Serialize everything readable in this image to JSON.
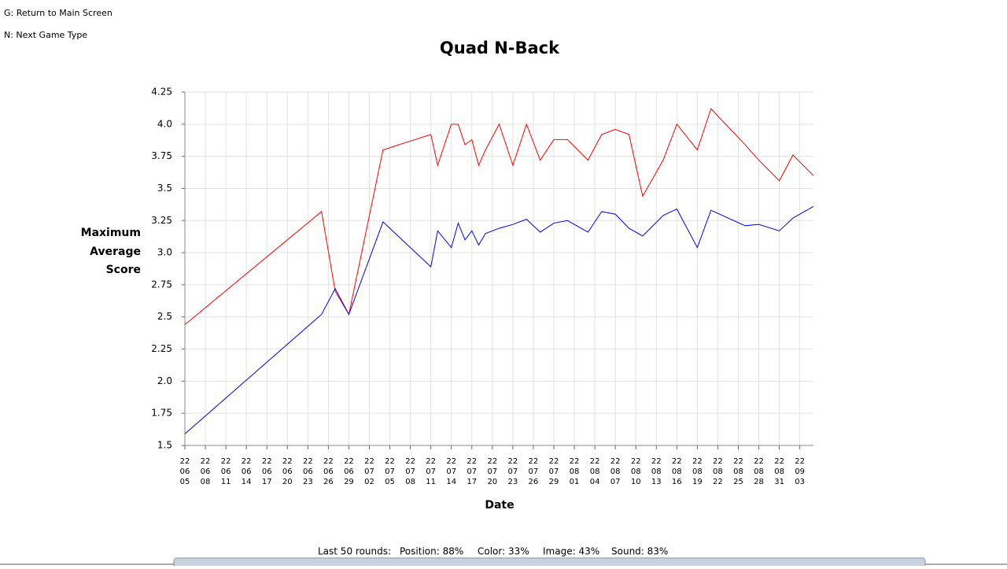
{
  "ui": {
    "hints": [
      "G: Return to Main Screen",
      "N: Next Game Type"
    ],
    "status": [
      "Last 50 rounds:",
      "Position: 88%",
      "Color: 33%",
      "Image: 43%",
      "Sound: 83%"
    ]
  },
  "chart_data": {
    "type": "line",
    "title": "Quad N-Back",
    "x_label": "Date",
    "y_label": "Score",
    "x": [
      "2022-06-05",
      "2022-06-25",
      "2022-06-27",
      "2022-06-29",
      "2022-07-04",
      "2022-07-11",
      "2022-07-12",
      "2022-07-14",
      "2022-07-15",
      "2022-07-16",
      "2022-07-17",
      "2022-07-18",
      "2022-07-19",
      "2022-07-21",
      "2022-07-23",
      "2022-07-25",
      "2022-07-27",
      "2022-07-29",
      "2022-07-31",
      "2022-08-03",
      "2022-08-05",
      "2022-08-07",
      "2022-08-09",
      "2022-08-11",
      "2022-08-14",
      "2022-08-16",
      "2022-08-19",
      "2022-08-21",
      "2022-08-26",
      "2022-08-28",
      "2022-08-31",
      "2022-09-02",
      "2022-09-05"
    ],
    "series": [
      {
        "name": "Maximum",
        "color": "#ff0000",
        "values": [
          2.44,
          3.32,
          2.7,
          2.52,
          3.8,
          3.92,
          3.68,
          4.0,
          4.0,
          3.84,
          3.88,
          3.68,
          3.8,
          4.0,
          3.68,
          4.0,
          3.72,
          3.88,
          3.88,
          3.72,
          3.92,
          3.96,
          3.92,
          3.44,
          3.72,
          4.0,
          3.8,
          4.12,
          3.84,
          3.72,
          3.56,
          3.76,
          3.6
        ]
      },
      {
        "name": "Average",
        "color": "#0000ff",
        "values": [
          1.59,
          2.52,
          2.72,
          2.52,
          3.24,
          2.89,
          3.17,
          3.04,
          3.23,
          3.1,
          3.17,
          3.06,
          3.15,
          3.19,
          3.22,
          3.26,
          3.16,
          3.23,
          3.25,
          3.16,
          3.32,
          3.3,
          3.19,
          3.13,
          3.29,
          3.34,
          3.04,
          3.33,
          3.21,
          3.22,
          3.17,
          3.27,
          3.36
        ]
      }
    ],
    "xlim": [
      "2022-06-05",
      "2022-09-05"
    ],
    "xticks": [
      {
        "value": "2022-06-05",
        "label": [
          "22",
          "06",
          "05"
        ]
      },
      {
        "value": "2022-06-08",
        "label": [
          "22",
          "06",
          "08"
        ]
      },
      {
        "value": "2022-06-11",
        "label": [
          "22",
          "06",
          "11"
        ]
      },
      {
        "value": "2022-06-14",
        "label": [
          "22",
          "06",
          "14"
        ]
      },
      {
        "value": "2022-06-17",
        "label": [
          "22",
          "06",
          "17"
        ]
      },
      {
        "value": "2022-06-20",
        "label": [
          "22",
          "06",
          "20"
        ]
      },
      {
        "value": "2022-06-23",
        "label": [
          "22",
          "06",
          "23"
        ]
      },
      {
        "value": "2022-06-26",
        "label": [
          "22",
          "06",
          "26"
        ]
      },
      {
        "value": "2022-06-29",
        "label": [
          "22",
          "06",
          "29"
        ]
      },
      {
        "value": "2022-07-02",
        "label": [
          "22",
          "07",
          "02"
        ]
      },
      {
        "value": "2022-07-05",
        "label": [
          "22",
          "07",
          "05"
        ]
      },
      {
        "value": "2022-07-08",
        "label": [
          "22",
          "07",
          "08"
        ]
      },
      {
        "value": "2022-07-11",
        "label": [
          "22",
          "07",
          "11"
        ]
      },
      {
        "value": "2022-07-14",
        "label": [
          "22",
          "07",
          "14"
        ]
      },
      {
        "value": "2022-07-17",
        "label": [
          "22",
          "07",
          "17"
        ]
      },
      {
        "value": "2022-07-20",
        "label": [
          "22",
          "07",
          "20"
        ]
      },
      {
        "value": "2022-07-23",
        "label": [
          "22",
          "07",
          "23"
        ]
      },
      {
        "value": "2022-07-26",
        "label": [
          "22",
          "07",
          "26"
        ]
      },
      {
        "value": "2022-07-29",
        "label": [
          "22",
          "07",
          "29"
        ]
      },
      {
        "value": "2022-08-01",
        "label": [
          "22",
          "08",
          "01"
        ]
      },
      {
        "value": "2022-08-04",
        "label": [
          "22",
          "08",
          "04"
        ]
      },
      {
        "value": "2022-08-07",
        "label": [
          "22",
          "08",
          "07"
        ]
      },
      {
        "value": "2022-08-10",
        "label": [
          "22",
          "08",
          "10"
        ]
      },
      {
        "value": "2022-08-13",
        "label": [
          "22",
          "08",
          "13"
        ]
      },
      {
        "value": "2022-08-16",
        "label": [
          "22",
          "08",
          "16"
        ]
      },
      {
        "value": "2022-08-19",
        "label": [
          "22",
          "08",
          "19"
        ]
      },
      {
        "value": "2022-08-22",
        "label": [
          "22",
          "08",
          "22"
        ]
      },
      {
        "value": "2022-08-25",
        "label": [
          "22",
          "08",
          "25"
        ]
      },
      {
        "value": "2022-08-28",
        "label": [
          "22",
          "08",
          "28"
        ]
      },
      {
        "value": "2022-08-31",
        "label": [
          "22",
          "08",
          "31"
        ]
      },
      {
        "value": "2022-09-03",
        "label": [
          "22",
          "09",
          "03"
        ]
      }
    ],
    "ylim": [
      1.5,
      4.25
    ],
    "yticks": [
      1.5,
      1.75,
      {
        "value": 2,
        "label": "2.0"
      },
      2.25,
      {
        "value": 2.5,
        "label": "2.5"
      },
      2.75,
      {
        "value": 3,
        "label": "3.0"
      },
      3.25,
      {
        "value": 3.5,
        "label": "3.5"
      },
      3.75,
      {
        "value": 4,
        "label": "4.0"
      },
      4.25
    ],
    "grid": true
  }
}
